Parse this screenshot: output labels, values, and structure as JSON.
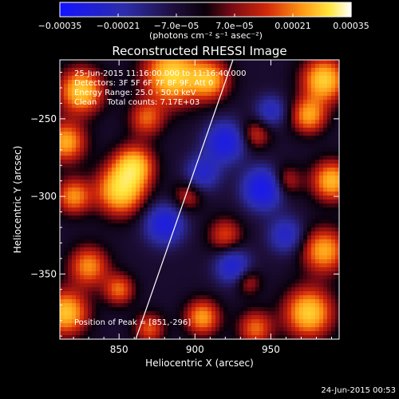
{
  "chart_data": {
    "type": "heatmap",
    "title": "Reconstructed RHESSI Image",
    "xlabel": "Heliocentric X (arcsec)",
    "ylabel": "Heliocentric Y (arcsec)",
    "xlim": [
      811,
      995
    ],
    "ylim": [
      -392,
      -212
    ],
    "x_ticks": [
      850,
      900,
      950
    ],
    "x_tick_labels": [
      "850",
      "900",
      "950"
    ],
    "y_ticks": [
      -250,
      -300,
      -350
    ],
    "y_tick_labels": [
      "−250",
      "−300",
      "−350"
    ],
    "colorbar": {
      "range": [
        -0.00035,
        0.00035
      ],
      "tick_values": [
        -0.00035,
        -0.00021,
        -7e-05,
        7e-05,
        0.00021,
        0.00035
      ],
      "tick_labels": [
        "−0.00035",
        "−0.00021",
        "−7.0e−05",
        "7.0e−05",
        "0.00021",
        "0.00035"
      ],
      "unit_label": "(photons cm⁻² s⁻¹ asec⁻²)"
    },
    "annotations": [
      "25-Jun-2015 11:16:00.000 to 11:16:40.000",
      "Detectors: 3F 5F 6F 7F 8F 9F, Att 0",
      "Energy Range: 25.0 - 50.0 keV",
      "Clean    Total counts: 7.17E+03"
    ],
    "peak_label": "Position of Peak = [851,-296]",
    "limb_line": {
      "x": [
        861,
        925
      ],
      "y": [
        -392,
        -212
      ]
    },
    "hotspots": [
      {
        "x": 825,
        "y": -232,
        "intensity": 0.95,
        "sigma": 10
      },
      {
        "x": 815,
        "y": -265,
        "intensity": 0.8,
        "sigma": 9
      },
      {
        "x": 885,
        "y": -222,
        "intensity": 1.0,
        "sigma": 13
      },
      {
        "x": 910,
        "y": -225,
        "intensity": 0.75,
        "sigma": 9
      },
      {
        "x": 868,
        "y": -250,
        "intensity": 0.55,
        "sigma": 8
      },
      {
        "x": 851,
        "y": -296,
        "intensity": 1.0,
        "sigma": 11
      },
      {
        "x": 860,
        "y": -280,
        "intensity": 0.85,
        "sigma": 9
      },
      {
        "x": 820,
        "y": -300,
        "intensity": 0.7,
        "sigma": 8
      },
      {
        "x": 830,
        "y": -345,
        "intensity": 0.7,
        "sigma": 9
      },
      {
        "x": 815,
        "y": -375,
        "intensity": 0.9,
        "sigma": 10
      },
      {
        "x": 850,
        "y": -360,
        "intensity": 0.6,
        "sigma": 7
      },
      {
        "x": 985,
        "y": -225,
        "intensity": 0.95,
        "sigma": 10
      },
      {
        "x": 975,
        "y": -248,
        "intensity": 0.75,
        "sigma": 8
      },
      {
        "x": 990,
        "y": -290,
        "intensity": 0.85,
        "sigma": 9
      },
      {
        "x": 985,
        "y": -335,
        "intensity": 0.8,
        "sigma": 10
      },
      {
        "x": 975,
        "y": -375,
        "intensity": 0.95,
        "sigma": 11
      },
      {
        "x": 940,
        "y": -385,
        "intensity": 0.6,
        "sigma": 8
      },
      {
        "x": 905,
        "y": -378,
        "intensity": 0.75,
        "sigma": 8
      },
      {
        "x": 870,
        "y": -385,
        "intensity": 0.55,
        "sigma": 7
      },
      {
        "x": 920,
        "y": -325,
        "intensity": 0.5,
        "sigma": 8
      },
      {
        "x": 940,
        "y": -260,
        "intensity": 0.45,
        "sigma": 7
      },
      {
        "x": 895,
        "y": -300,
        "intensity": 0.4,
        "sigma": 7
      },
      {
        "x": 960,
        "y": -290,
        "intensity": 0.45,
        "sigma": 7
      },
      {
        "x": 935,
        "y": -355,
        "intensity": 0.4,
        "sigma": 6
      }
    ],
    "coldspots": [
      {
        "x": 945,
        "y": -295,
        "intensity": -0.95,
        "sigma": 9
      },
      {
        "x": 920,
        "y": -265,
        "intensity": -0.8,
        "sigma": 9
      },
      {
        "x": 880,
        "y": -318,
        "intensity": -0.75,
        "sigma": 9
      },
      {
        "x": 925,
        "y": -345,
        "intensity": -0.65,
        "sigma": 8
      },
      {
        "x": 905,
        "y": -285,
        "intensity": -0.55,
        "sigma": 8
      },
      {
        "x": 960,
        "y": -325,
        "intensity": -0.55,
        "sigma": 8
      },
      {
        "x": 950,
        "y": -245,
        "intensity": -0.5,
        "sigma": 7
      }
    ]
  },
  "footer": {
    "timestamp": "24-Jun-2015 00:53"
  }
}
